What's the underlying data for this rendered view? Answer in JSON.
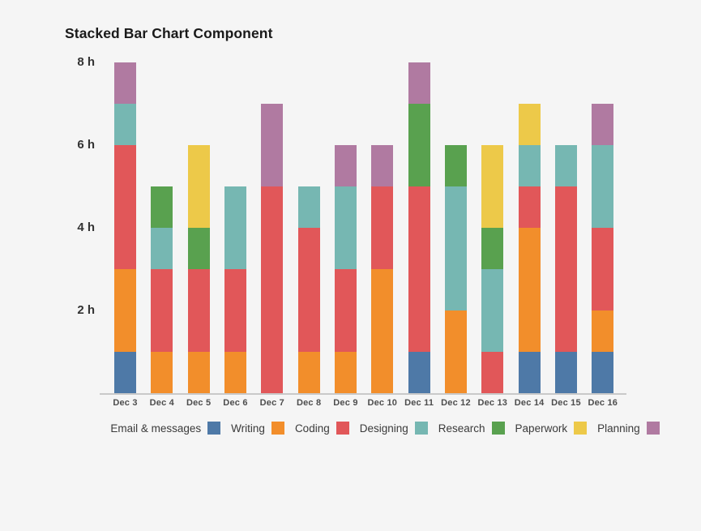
{
  "title": "Stacked Bar Chart Component",
  "colors": {
    "background": "#f5f5f5",
    "axis_line": "#c9c9c9",
    "title_text": "#1a1a1a",
    "y_tick_text": "#333333",
    "x_tick_text": "#4d4d4d",
    "legend_text": "#3a3a3a"
  },
  "chart_data": {
    "type": "bar",
    "stacked": true,
    "title": "Stacked Bar Chart Component",
    "unit": "hours",
    "categories": [
      "Dec 3",
      "Dec 4",
      "Dec 5",
      "Dec 6",
      "Dec 7",
      "Dec 8",
      "Dec 9",
      "Dec 10",
      "Dec 11",
      "Dec 12",
      "Dec 13",
      "Dec 14",
      "Dec 15",
      "Dec 16"
    ],
    "series": [
      {
        "name": "Email & messages",
        "color": "#4e79a7",
        "values": [
          1,
          0,
          0,
          0,
          0,
          0,
          0,
          0,
          1,
          0,
          0,
          1,
          1,
          1
        ]
      },
      {
        "name": "Writing",
        "color": "#f28e2b",
        "values": [
          2,
          1,
          1,
          1,
          0,
          1,
          1,
          3,
          0,
          2,
          0,
          3,
          0,
          1
        ]
      },
      {
        "name": "Coding",
        "color": "#e15759",
        "values": [
          3,
          2,
          2,
          2,
          5,
          3,
          2,
          2,
          4,
          0,
          1,
          1,
          4,
          2
        ]
      },
      {
        "name": "Designing",
        "color": "#76b7b2",
        "values": [
          1,
          1,
          0,
          2,
          0,
          1,
          2,
          0,
          0,
          3,
          2,
          1,
          1,
          2
        ]
      },
      {
        "name": "Research",
        "color": "#59a14f",
        "values": [
          0,
          1,
          1,
          0,
          0,
          0,
          0,
          0,
          2,
          1,
          1,
          0,
          0,
          0
        ]
      },
      {
        "name": "Paperwork",
        "color": "#edc949",
        "values": [
          0,
          0,
          2,
          0,
          0,
          0,
          0,
          0,
          0,
          0,
          2,
          1,
          0,
          0
        ]
      },
      {
        "name": "Planning",
        "color": "#b07aa1",
        "values": [
          1,
          0,
          0,
          0,
          2,
          0,
          1,
          1,
          1,
          0,
          0,
          0,
          0,
          1
        ]
      }
    ],
    "bar_totals": [
      8,
      5,
      6,
      5,
      7,
      5,
      6,
      6,
      8,
      6,
      6,
      7,
      6,
      7
    ],
    "yticks": [
      {
        "value": 2,
        "label": "2 h"
      },
      {
        "value": 4,
        "label": "4 h"
      },
      {
        "value": 6,
        "label": "6 h"
      },
      {
        "value": 8,
        "label": "8 h"
      }
    ],
    "ylim": [
      0,
      8
    ],
    "grid": false,
    "legend_position": "bottom",
    "legend_layout": "label-then-swatch"
  }
}
